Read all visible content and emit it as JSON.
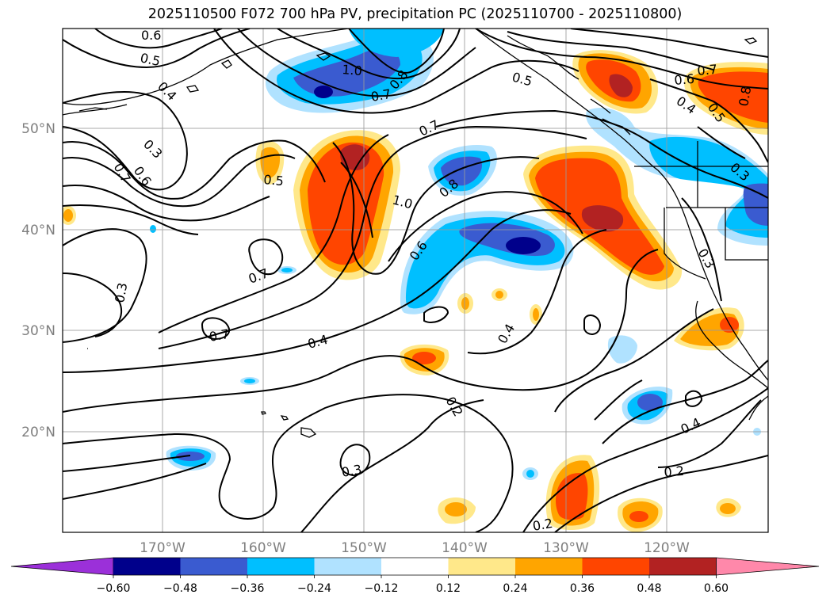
{
  "title": "2025110500 F072 700 hPa PV, precipitation PC (2025110700 - 2025110800)",
  "lat_labels": [
    "50°N",
    "40°N",
    "30°N",
    "20°N"
  ],
  "lon_labels": [
    "170°W",
    "160°W",
    "150°W",
    "140°W",
    "130°W",
    "120°W"
  ],
  "colorbar": {
    "ticks": [
      "−0.60",
      "−0.48",
      "−0.36",
      "−0.24",
      "−0.12",
      "0.12",
      "0.24",
      "0.36",
      "0.48",
      "0.60"
    ],
    "colors": [
      "#9b30d9",
      "#00008b",
      "#3a5bd0",
      "#00bfff",
      "#b0e2ff",
      "#ffffff",
      "#ffe88a",
      "#ffa500",
      "#ff4500",
      "#b22222",
      "#ff88aa"
    ]
  },
  "contour_labels": [
    "0.6",
    "0.5",
    "0.4",
    "0.3",
    "0.7",
    "0.6",
    "1.0",
    "0.8",
    "0.7",
    "0.5",
    "0.7",
    "0.6",
    "0.4",
    "0.5",
    "0.8",
    "0.5",
    "0.7",
    "1.0",
    "0.8",
    "0.3",
    "0.6",
    "0.7",
    "0.3",
    "0.7",
    "0.4",
    "0.4",
    "0.2",
    "0.3",
    "0.4",
    "0.3",
    "0.2",
    "0.2"
  ]
}
